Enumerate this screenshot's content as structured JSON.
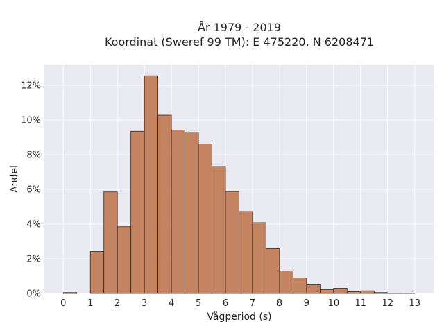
{
  "chart_data": {
    "type": "bar",
    "title_line1": "År 1979 - 2019",
    "title_line2": "Koordinat (Sweref 99 TM): E 475220, N 6208471",
    "xlabel": "Vågperiod (s)",
    "ylabel": "Andel",
    "x_ticks": [
      "0",
      "1",
      "2",
      "3",
      "4",
      "5",
      "6",
      "7",
      "8",
      "9",
      "10",
      "11",
      "12",
      "13"
    ],
    "y_ticks": [
      "0%",
      "2%",
      "4%",
      "6%",
      "8%",
      "10%",
      "12%"
    ],
    "xlim": [
      -0.7,
      13.7
    ],
    "ylim": [
      0,
      13.2
    ],
    "bin_width": 0.5,
    "bins": [
      {
        "x": 0.0,
        "value": 0.05
      },
      {
        "x": 1.0,
        "value": 2.42
      },
      {
        "x": 1.5,
        "value": 5.85
      },
      {
        "x": 2.0,
        "value": 3.85
      },
      {
        "x": 2.5,
        "value": 9.35
      },
      {
        "x": 3.0,
        "value": 12.55
      },
      {
        "x": 3.5,
        "value": 10.28
      },
      {
        "x": 4.0,
        "value": 9.42
      },
      {
        "x": 4.5,
        "value": 9.28
      },
      {
        "x": 5.0,
        "value": 8.62
      },
      {
        "x": 5.5,
        "value": 7.32
      },
      {
        "x": 6.0,
        "value": 5.88
      },
      {
        "x": 6.5,
        "value": 4.72
      },
      {
        "x": 7.0,
        "value": 4.08
      },
      {
        "x": 7.5,
        "value": 2.58
      },
      {
        "x": 8.0,
        "value": 1.3
      },
      {
        "x": 8.5,
        "value": 0.9
      },
      {
        "x": 9.0,
        "value": 0.5
      },
      {
        "x": 9.5,
        "value": 0.23
      },
      {
        "x": 10.0,
        "value": 0.3
      },
      {
        "x": 10.5,
        "value": 0.1
      },
      {
        "x": 11.0,
        "value": 0.15
      },
      {
        "x": 11.5,
        "value": 0.05
      },
      {
        "x": 12.0,
        "value": 0.02
      },
      {
        "x": 12.5,
        "value": 0.02
      }
    ],
    "grid": true,
    "bar_color": "#c07a55",
    "bar_edge_color": "#3b2418",
    "plot_background": "#e9e9f2",
    "grid_color": "#ffffff"
  }
}
